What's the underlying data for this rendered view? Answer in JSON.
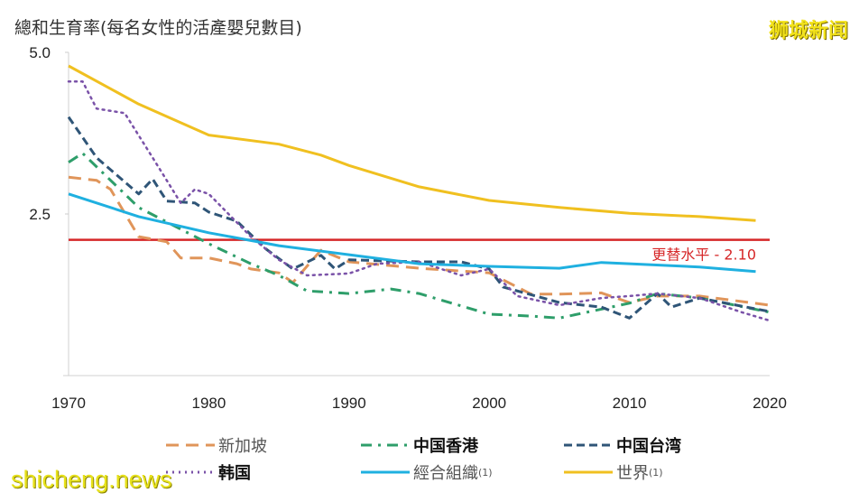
{
  "title": "總和生育率(每名女性的活產嬰兒數目)",
  "watermarks": {
    "top_right": "狮城新闻",
    "bottom_left": "shicheng.news"
  },
  "chart_data": {
    "type": "line",
    "title": "總和生育率(每名女性的活產嬰兒數目)",
    "xlim": [
      1970,
      2020
    ],
    "ylim": [
      0,
      5
    ],
    "x_ticks": [
      "1970",
      "1980",
      "1990",
      "2000",
      "2010",
      "2020"
    ],
    "y_ticks": [
      "2.5",
      "5.0"
    ],
    "grid": false,
    "legend_position": "bottom",
    "reference_line": {
      "value": 2.1,
      "label": "更替水平  - 2.10",
      "color": "#d62728"
    },
    "series": [
      {
        "name": "新加坡",
        "color": "#e0955a",
        "style": "dash",
        "bold": false,
        "x": [
          1970,
          1972,
          1973,
          1975,
          1977,
          1978,
          1980,
          1982,
          1983,
          1985,
          1986,
          1988,
          1990,
          1995,
          2000,
          2003,
          2005,
          2008,
          2010,
          2012,
          2015,
          2020
        ],
        "y": [
          3.07,
          3.02,
          2.88,
          2.15,
          2.07,
          1.82,
          1.82,
          1.73,
          1.65,
          1.59,
          1.44,
          1.94,
          1.76,
          1.66,
          1.59,
          1.26,
          1.26,
          1.28,
          1.13,
          1.23,
          1.23,
          1.09
        ]
      },
      {
        "name": "中国香港",
        "color": "#2e9e6a",
        "style": "dashdot",
        "bold": true,
        "x": [
          1970,
          1971,
          1975,
          1980,
          1983,
          1985,
          1987,
          1990,
          1993,
          1995,
          2000,
          2003,
          2005,
          2010,
          2012,
          2015,
          2020
        ],
        "y": [
          3.3,
          3.44,
          2.6,
          2.04,
          1.73,
          1.55,
          1.31,
          1.27,
          1.34,
          1.27,
          0.95,
          0.92,
          0.89,
          1.12,
          1.27,
          1.2,
          0.98
        ]
      },
      {
        "name": "中国台湾",
        "color": "#2f5577",
        "style": "dash-short",
        "bold": true,
        "x": [
          1970,
          1972,
          1975,
          1976,
          1977,
          1979,
          1980,
          1982,
          1984,
          1986,
          1988,
          1989,
          1990,
          1995,
          1998,
          2000,
          2001,
          2005,
          2008,
          2010,
          2012,
          2013,
          2015,
          2020
        ],
        "y": [
          4.0,
          3.37,
          2.81,
          3.04,
          2.7,
          2.67,
          2.53,
          2.39,
          1.97,
          1.65,
          1.86,
          1.65,
          1.79,
          1.76,
          1.76,
          1.65,
          1.37,
          1.13,
          1.06,
          0.89,
          1.27,
          1.06,
          1.2,
          0.99
        ]
      },
      {
        "name": "韩国",
        "color": "#7a52a8",
        "style": "dot",
        "bold": true,
        "x": [
          1970,
          1971,
          1972,
          1974,
          1976,
          1977,
          1978,
          1979,
          1980,
          1983,
          1985,
          1987,
          1990,
          1992,
          1995,
          1998,
          2000,
          2002,
          2005,
          2008,
          2010,
          2012,
          2015,
          2018,
          2020
        ],
        "y": [
          4.55,
          4.55,
          4.13,
          4.06,
          3.37,
          3.02,
          2.67,
          2.88,
          2.81,
          2.15,
          1.79,
          1.55,
          1.58,
          1.73,
          1.76,
          1.55,
          1.65,
          1.23,
          1.09,
          1.2,
          1.23,
          1.27,
          1.2,
          0.98,
          0.85
        ]
      },
      {
        "name": "經合組織",
        "sup": "(1)",
        "color": "#1fb0e0",
        "style": "solid",
        "bold": false,
        "x": [
          1970,
          1975,
          1980,
          1985,
          1990,
          1995,
          2000,
          2005,
          2008,
          2010,
          2015,
          2019
        ],
        "y": [
          2.81,
          2.46,
          2.21,
          2.01,
          1.87,
          1.73,
          1.69,
          1.66,
          1.75,
          1.73,
          1.68,
          1.61
        ]
      },
      {
        "name": "世界",
        "sup": "(1)",
        "color": "#f0c020",
        "style": "solid",
        "bold": false,
        "x": [
          1970,
          1975,
          1980,
          1985,
          1988,
          1990,
          1995,
          2000,
          2005,
          2010,
          2015,
          2019
        ],
        "y": [
          4.79,
          4.2,
          3.72,
          3.58,
          3.41,
          3.25,
          2.92,
          2.71,
          2.6,
          2.51,
          2.46,
          2.4
        ]
      }
    ]
  }
}
